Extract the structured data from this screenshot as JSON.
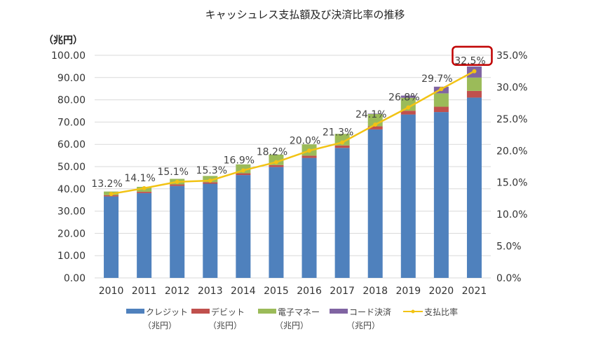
{
  "chart_data": {
    "type": "bar",
    "title": "キャッシュレス支払額及び決済比率の推移",
    "ylabel": "（兆円）",
    "categories": [
      "2010",
      "2011",
      "2012",
      "2013",
      "2014",
      "2015",
      "2016",
      "2017",
      "2018",
      "2019",
      "2020",
      "2021"
    ],
    "ylim": [
      0,
      100
    ],
    "y2lim": [
      0,
      35
    ],
    "yticks": [
      "0.00",
      "10.00",
      "20.00",
      "30.00",
      "40.00",
      "50.00",
      "60.00",
      "70.00",
      "80.00",
      "90.00",
      "100.00"
    ],
    "y2ticks": [
      "0.0%",
      "5.0%",
      "10.0%",
      "15.0%",
      "20.0%",
      "25.0%",
      "30.0%",
      "35.0%"
    ],
    "grid": true,
    "legend_position": "bottom",
    "stacked": true,
    "series": [
      {
        "name": "クレジット",
        "name2": "（兆円）",
        "color": "#4f81bd",
        "values": [
          36.6,
          38.1,
          41.3,
          42.3,
          46.2,
          49.8,
          53.9,
          58.4,
          66.7,
          73.4,
          74.5,
          81.0
        ]
      },
      {
        "name": "デビット",
        "name2": "（兆円）",
        "color": "#c0504d",
        "values": [
          0.6,
          0.6,
          0.7,
          0.7,
          0.8,
          0.9,
          1.0,
          1.1,
          1.4,
          1.7,
          2.4,
          3.0
        ]
      },
      {
        "name": "電子マネー",
        "name2": "（兆円）",
        "color": "#9bbb59",
        "values": [
          1.6,
          2.2,
          2.5,
          2.8,
          4.0,
          4.7,
          5.1,
          5.2,
          5.5,
          5.8,
          6.0,
          6.0
        ]
      },
      {
        "name": "コード決済",
        "name2": "（兆円）",
        "color": "#8064a2",
        "values": [
          0,
          0,
          0,
          0,
          0,
          0,
          0,
          0,
          0.2,
          1.0,
          3.0,
          5.0
        ]
      }
    ],
    "line": {
      "name": "支払比率",
      "color": "#f2c314",
      "axis": "right",
      "values": [
        13.2,
        14.1,
        15.1,
        15.3,
        16.9,
        18.2,
        20.0,
        21.3,
        24.1,
        26.8,
        29.7,
        32.5
      ],
      "labels": [
        "13.2%",
        "14.1%",
        "15.1%",
        "15.3%",
        "16.9%",
        "18.2%",
        "20.0%",
        "21.3%",
        "24.1%",
        "26.8%",
        "29.7%",
        "32.5%"
      ]
    },
    "highlight": {
      "label": "32.5%",
      "color": "#c00000"
    }
  }
}
